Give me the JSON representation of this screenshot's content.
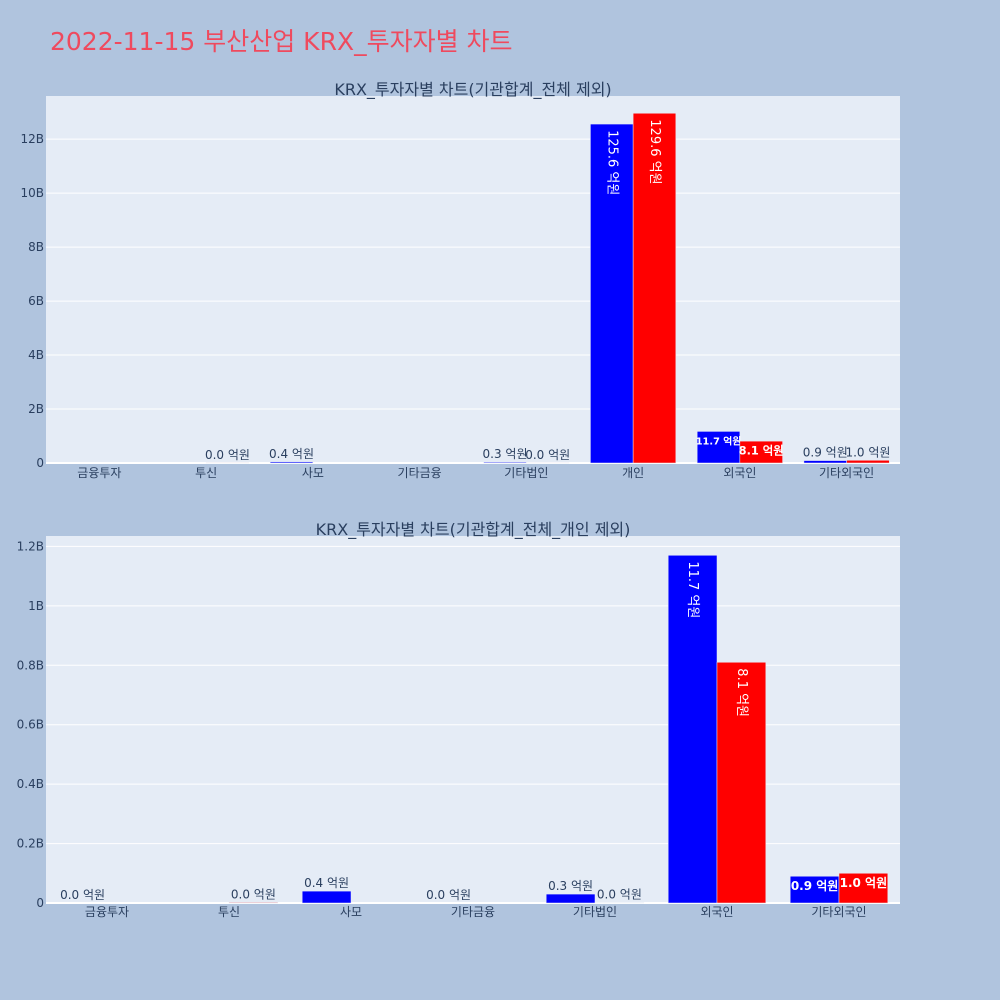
{
  "page": {
    "title": "2022-11-15 부산산업 KRX_투자자별 차트"
  },
  "colors": {
    "background": "#b0c4de",
    "plot_bg": "#e5ecf6",
    "grid": "#ffffff",
    "title": "#ef4a5e",
    "text": "#2a3f5f",
    "series1": "#0000ff",
    "series2": "#ff0000"
  },
  "chart_data": [
    {
      "type": "bar",
      "title": "KRX_투자자별 차트(기관합계_전체 제외)",
      "categories": [
        "금융투자",
        "투신",
        "사모",
        "기타금융",
        "기타법인",
        "개인",
        "외국인",
        "기타외국인"
      ],
      "series": [
        {
          "values": [
            0,
            0,
            40000000,
            0,
            30000000,
            12560000000,
            1170000000,
            90000000
          ],
          "labels": [
            "",
            "",
            "0.4 억원",
            "",
            "0.3 억원",
            "125.6 억원",
            "11.7 억원",
            "0.9 억원"
          ]
        },
        {
          "values": [
            0,
            2000000,
            0,
            0,
            1000000,
            12960000000,
            810000000,
            100000000
          ],
          "labels": [
            "",
            "0.0 억원",
            "",
            "",
            "0.0 억원",
            "129.6 억원",
            "8.1 억원",
            "1.0 억원"
          ]
        }
      ],
      "ylim": [
        0,
        13600000000
      ],
      "yticks": [
        0,
        2000000000,
        4000000000,
        6000000000,
        8000000000,
        10000000000,
        12000000000
      ],
      "ytick_labels": [
        "0",
        "2B",
        "4B",
        "6B",
        "8B",
        "10B",
        "12B"
      ],
      "grid": true
    },
    {
      "type": "bar",
      "title": "KRX_투자자별 차트(기관합계_전체_개인 제외)",
      "categories": [
        "금융투자",
        "투신",
        "사모",
        "기타금융",
        "기타법인",
        "외국인",
        "기타외국인"
      ],
      "series": [
        {
          "values": [
            0,
            0,
            40000000,
            0,
            30000000,
            1170000000,
            90000000
          ],
          "labels": [
            "0.0 억원",
            "",
            "0.4 억원",
            "0.0 억원",
            "0.3 억원",
            "11.7 억원",
            "0.9 억원"
          ]
        },
        {
          "values": [
            0,
            2000000,
            0,
            0,
            1000000,
            810000000,
            100000000
          ],
          "labels": [
            "",
            "0.0 억원",
            "",
            "",
            "0.0 억원",
            "8.1 억원",
            "1.0 억원"
          ]
        }
      ],
      "ylim": [
        0,
        1235000000
      ],
      "yticks": [
        0,
        200000000,
        400000000,
        600000000,
        800000000,
        1000000000,
        1200000000
      ],
      "ytick_labels": [
        "0",
        "0.2B",
        "0.4B",
        "0.6B",
        "0.8B",
        "1B",
        "1.2B"
      ],
      "grid": true
    }
  ]
}
